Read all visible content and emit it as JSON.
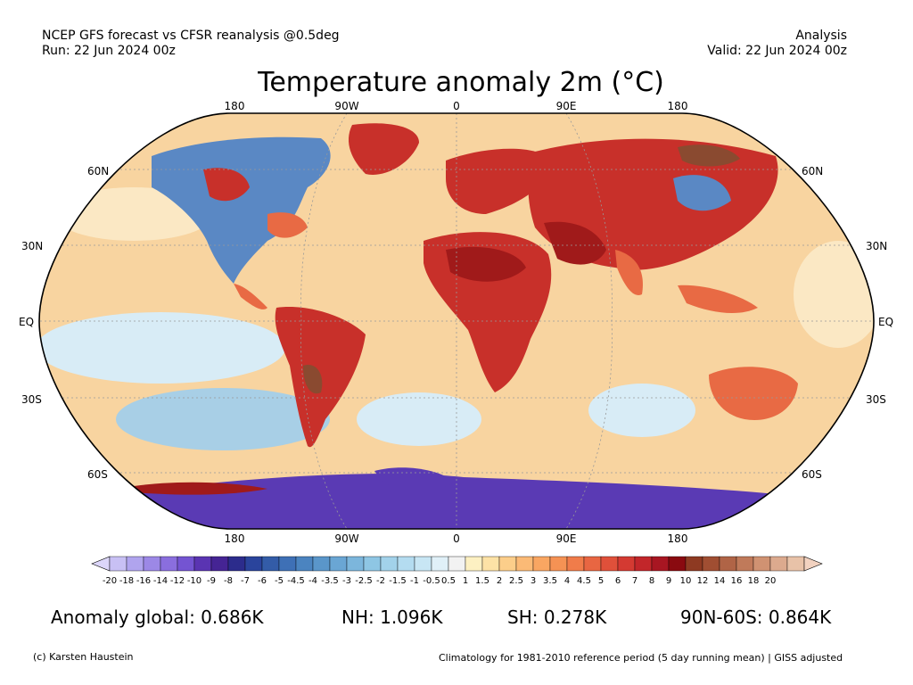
{
  "header": {
    "source_line": "NCEP GFS forecast vs CFSR reanalysis @0.5deg",
    "run_line": "Run: 22 Jun 2024 00z",
    "type_line": "Analysis",
    "valid_line": "Valid: 22 Jun 2024 00z"
  },
  "title": "Temperature anomaly 2m (°C)",
  "axes": {
    "lon_top": [
      "180",
      "90W",
      "0",
      "90E",
      "180"
    ],
    "lon_bottom": [
      "180",
      "90W",
      "0",
      "90E",
      "180"
    ],
    "lat_left": [
      "60N",
      "30N",
      "EQ",
      "30S",
      "60S"
    ],
    "lat_right": [
      "60N",
      "30N",
      "EQ",
      "30S",
      "60S"
    ]
  },
  "colorbar": {
    "labels": [
      "-20",
      "-18",
      "-16",
      "-14",
      "-12",
      "-10",
      "-9",
      "-8",
      "-7",
      "-6",
      "-5",
      "-4.5",
      "-4",
      "-3.5",
      "-3",
      "-2.5",
      "-2",
      "-1.5",
      "-1",
      "-0.5",
      "0.5",
      "1",
      "1.5",
      "2",
      "2.5",
      "3",
      "3.5",
      "4",
      "4.5",
      "5",
      "6",
      "7",
      "8",
      "9",
      "10",
      "12",
      "14",
      "16",
      "18",
      "20"
    ],
    "colors": [
      "#c8c0f4",
      "#b0a4ee",
      "#9c88e6",
      "#8a6ede",
      "#7454d2",
      "#5a34b2",
      "#452494",
      "#2c2c8c",
      "#2a449c",
      "#335ca8",
      "#3e70b6",
      "#4b84c0",
      "#5a96ca",
      "#6aa6d4",
      "#7cb6dc",
      "#8ec6e4",
      "#a2d2ea",
      "#b4dcf0",
      "#c8e6f4",
      "#e0f0f8",
      "#f2f2f2",
      "#fdf0c2",
      "#fde2a6",
      "#fcce8a",
      "#fbba76",
      "#f9a662",
      "#f59254",
      "#f07c4a",
      "#e86642",
      "#e0503a",
      "#d43a32",
      "#c2262a",
      "#a81622",
      "#8a0a10",
      "#8e3a22",
      "#a04e32",
      "#b06446",
      "#c07a5a",
      "#d09272",
      "#dcaa8e",
      "#e8c2a8"
    ],
    "lower_extend_color": "#dcd6fa",
    "upper_extend_color": "#f2d2c0"
  },
  "stats": {
    "global": "Anomaly global: 0.686K",
    "nh": "NH: 1.096K",
    "sh": "SH: 0.278K",
    "arctic": "90N-60S: 0.864K"
  },
  "footer": {
    "credit": "(c) Karsten Haustein",
    "note": "Climatology for 1981-2010 reference period (5 day running mean) | GISS adjusted"
  },
  "map_colors": {
    "ocean_warm": "#f8d4a0",
    "ocean_light": "#fbe8c4",
    "ocean_cool": "#d8ecf6",
    "ocean_blue": "#a8cfe6",
    "land_hot": "#c8302a",
    "land_very_hot": "#a01a1a",
    "land_warm": "#e86a44",
    "land_cool": "#5a88c4",
    "antarctic": "#5a3ab4",
    "extreme_hot": "#8a4a30"
  }
}
